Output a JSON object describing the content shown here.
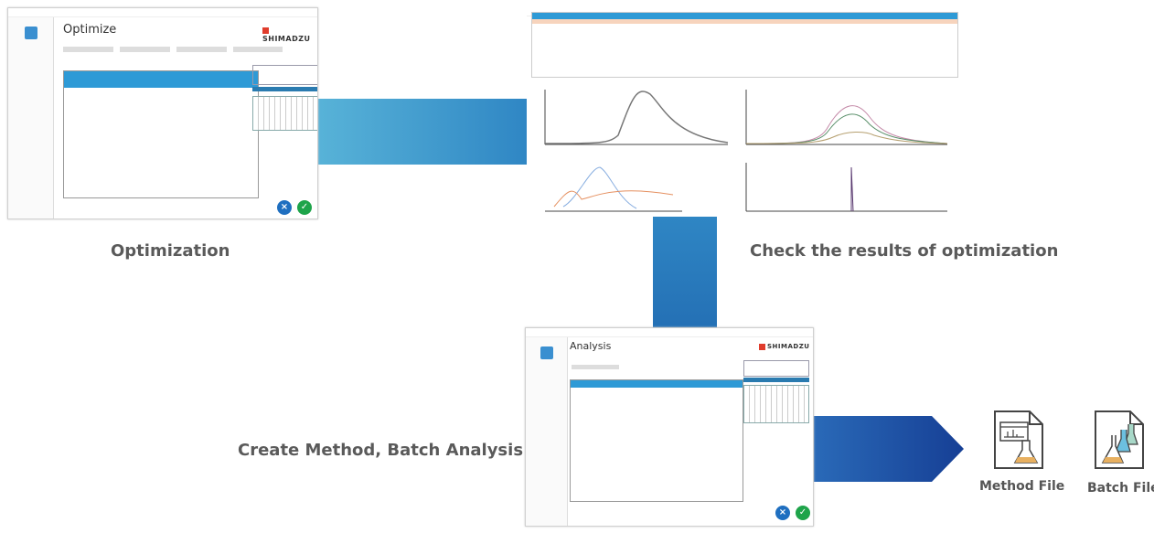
{
  "steps": {
    "optimization": {
      "label": "Optimization",
      "screen_title": "Optimize",
      "brand": "SHIMADZU"
    },
    "check": {
      "label": "Check the results of optimization"
    },
    "create": {
      "label": "Create Method, Batch Analysis",
      "screen_title": "Analysis",
      "brand": "SHIMADZU"
    }
  },
  "outputs": [
    {
      "label": "Method File",
      "icon": "method-file-icon"
    },
    {
      "label": "Batch File",
      "icon": "batch-file-icon"
    }
  ],
  "colors": {
    "arrow_light": "#58b3d8",
    "arrow_mid": "#2f7fbf",
    "arrow_dark": "#1a4f9c",
    "header_blue": "#2e9ad6",
    "cancel": "#1f6fc0",
    "ok": "#1ea44a"
  }
}
